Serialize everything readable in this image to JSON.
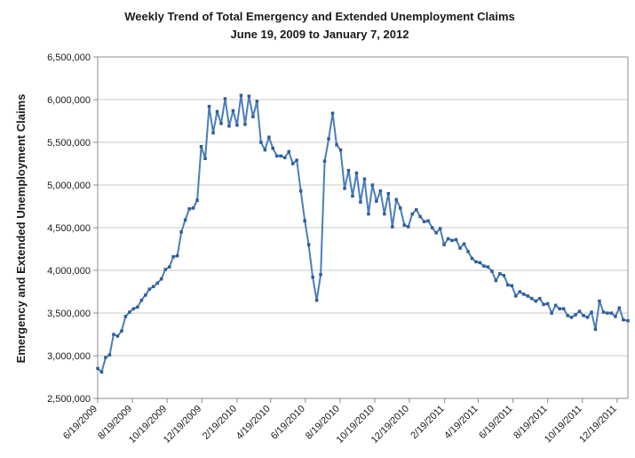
{
  "chart_data": {
    "type": "line",
    "title": "Weekly Trend of Total Emergency and Extended Unemployment Claims",
    "subtitle": "June 19, 2009 to January 7, 2012",
    "xlabel": "",
    "ylabel": "Emergency and Extended Unemployment Claims",
    "ylim": [
      2500000,
      6500000
    ],
    "y_ticks": [
      {
        "value": 2500000,
        "label": "2,500,000"
      },
      {
        "value": 3000000,
        "label": "3,000,000"
      },
      {
        "value": 3500000,
        "label": "3,500,000"
      },
      {
        "value": 4000000,
        "label": "4,000,000"
      },
      {
        "value": 4500000,
        "label": "4,500,000"
      },
      {
        "value": 5000000,
        "label": "5,000,000"
      },
      {
        "value": 5500000,
        "label": "5,500,000"
      },
      {
        "value": 6000000,
        "label": "6,000,000"
      },
      {
        "value": 6500000,
        "label": "6,500,000"
      }
    ],
    "x_start": "2009-06-19",
    "x_end": "2012-01-07",
    "x_ticks": [
      {
        "date": "2009-06-19",
        "label": "6/19/2009"
      },
      {
        "date": "2009-08-19",
        "label": "8/19/2009"
      },
      {
        "date": "2009-10-19",
        "label": "10/19/2009"
      },
      {
        "date": "2009-12-19",
        "label": "12/19/2009"
      },
      {
        "date": "2010-02-19",
        "label": "2/19/2010"
      },
      {
        "date": "2010-04-19",
        "label": "4/19/2010"
      },
      {
        "date": "2010-06-19",
        "label": "6/19/2010"
      },
      {
        "date": "2010-08-19",
        "label": "8/19/2010"
      },
      {
        "date": "2010-10-19",
        "label": "10/19/2010"
      },
      {
        "date": "2010-12-19",
        "label": "12/19/2010"
      },
      {
        "date": "2011-02-19",
        "label": "2/19/2011"
      },
      {
        "date": "2011-04-19",
        "label": "4/19/2011"
      },
      {
        "date": "2011-06-19",
        "label": "6/19/2011"
      },
      {
        "date": "2011-08-19",
        "label": "8/19/2011"
      },
      {
        "date": "2011-10-19",
        "label": "10/19/2011"
      },
      {
        "date": "2011-12-19",
        "label": "12/19/2011"
      }
    ],
    "grid": true,
    "legend": "none",
    "line_color": "#4a7ebb",
    "marker_color": "#2f5e99",
    "series": [
      {
        "name": "",
        "points": [
          {
            "x": "2009-06-19",
            "y": 2850000
          },
          {
            "x": "2009-06-26",
            "y": 2810000
          },
          {
            "x": "2009-07-03",
            "y": 2980000
          },
          {
            "x": "2009-07-10",
            "y": 3010000
          },
          {
            "x": "2009-07-17",
            "y": 3250000
          },
          {
            "x": "2009-07-24",
            "y": 3230000
          },
          {
            "x": "2009-07-31",
            "y": 3290000
          },
          {
            "x": "2009-08-07",
            "y": 3460000
          },
          {
            "x": "2009-08-14",
            "y": 3510000
          },
          {
            "x": "2009-08-21",
            "y": 3550000
          },
          {
            "x": "2009-08-28",
            "y": 3570000
          },
          {
            "x": "2009-09-04",
            "y": 3650000
          },
          {
            "x": "2009-09-11",
            "y": 3710000
          },
          {
            "x": "2009-09-18",
            "y": 3780000
          },
          {
            "x": "2009-09-25",
            "y": 3810000
          },
          {
            "x": "2009-10-02",
            "y": 3850000
          },
          {
            "x": "2009-10-09",
            "y": 3900000
          },
          {
            "x": "2009-10-16",
            "y": 4010000
          },
          {
            "x": "2009-10-23",
            "y": 4040000
          },
          {
            "x": "2009-10-30",
            "y": 4160000
          },
          {
            "x": "2009-11-06",
            "y": 4170000
          },
          {
            "x": "2009-11-13",
            "y": 4450000
          },
          {
            "x": "2009-11-20",
            "y": 4590000
          },
          {
            "x": "2009-11-27",
            "y": 4720000
          },
          {
            "x": "2009-12-04",
            "y": 4730000
          },
          {
            "x": "2009-12-11",
            "y": 4820000
          },
          {
            "x": "2009-12-18",
            "y": 5450000
          },
          {
            "x": "2009-12-25",
            "y": 5310000
          },
          {
            "x": "2010-01-01",
            "y": 5920000
          },
          {
            "x": "2010-01-08",
            "y": 5610000
          },
          {
            "x": "2010-01-15",
            "y": 5860000
          },
          {
            "x": "2010-01-22",
            "y": 5720000
          },
          {
            "x": "2010-01-29",
            "y": 6010000
          },
          {
            "x": "2010-02-05",
            "y": 5690000
          },
          {
            "x": "2010-02-12",
            "y": 5870000
          },
          {
            "x": "2010-02-19",
            "y": 5700000
          },
          {
            "x": "2010-02-26",
            "y": 6050000
          },
          {
            "x": "2010-03-05",
            "y": 5710000
          },
          {
            "x": "2010-03-12",
            "y": 6040000
          },
          {
            "x": "2010-03-19",
            "y": 5800000
          },
          {
            "x": "2010-03-26",
            "y": 5980000
          },
          {
            "x": "2010-04-02",
            "y": 5500000
          },
          {
            "x": "2010-04-09",
            "y": 5410000
          },
          {
            "x": "2010-04-16",
            "y": 5560000
          },
          {
            "x": "2010-04-23",
            "y": 5430000
          },
          {
            "x": "2010-04-30",
            "y": 5340000
          },
          {
            "x": "2010-05-07",
            "y": 5340000
          },
          {
            "x": "2010-05-14",
            "y": 5320000
          },
          {
            "x": "2010-05-21",
            "y": 5390000
          },
          {
            "x": "2010-05-28",
            "y": 5250000
          },
          {
            "x": "2010-06-04",
            "y": 5290000
          },
          {
            "x": "2010-06-11",
            "y": 4930000
          },
          {
            "x": "2010-06-18",
            "y": 4580000
          },
          {
            "x": "2010-06-25",
            "y": 4300000
          },
          {
            "x": "2010-07-02",
            "y": 3920000
          },
          {
            "x": "2010-07-09",
            "y": 3650000
          },
          {
            "x": "2010-07-16",
            "y": 3950000
          },
          {
            "x": "2010-07-23",
            "y": 5280000
          },
          {
            "x": "2010-07-30",
            "y": 5540000
          },
          {
            "x": "2010-08-06",
            "y": 5840000
          },
          {
            "x": "2010-08-13",
            "y": 5470000
          },
          {
            "x": "2010-08-20",
            "y": 5410000
          },
          {
            "x": "2010-08-27",
            "y": 4960000
          },
          {
            "x": "2010-09-03",
            "y": 5170000
          },
          {
            "x": "2010-09-10",
            "y": 4870000
          },
          {
            "x": "2010-09-17",
            "y": 5140000
          },
          {
            "x": "2010-09-24",
            "y": 4800000
          },
          {
            "x": "2010-10-01",
            "y": 5070000
          },
          {
            "x": "2010-10-08",
            "y": 4660000
          },
          {
            "x": "2010-10-15",
            "y": 5000000
          },
          {
            "x": "2010-10-22",
            "y": 4810000
          },
          {
            "x": "2010-10-29",
            "y": 4930000
          },
          {
            "x": "2010-11-05",
            "y": 4660000
          },
          {
            "x": "2010-11-12",
            "y": 4900000
          },
          {
            "x": "2010-11-19",
            "y": 4510000
          },
          {
            "x": "2010-11-26",
            "y": 4830000
          },
          {
            "x": "2010-12-03",
            "y": 4730000
          },
          {
            "x": "2010-12-10",
            "y": 4530000
          },
          {
            "x": "2010-12-17",
            "y": 4510000
          },
          {
            "x": "2010-12-24",
            "y": 4660000
          },
          {
            "x": "2010-12-31",
            "y": 4710000
          },
          {
            "x": "2011-01-07",
            "y": 4630000
          },
          {
            "x": "2011-01-14",
            "y": 4570000
          },
          {
            "x": "2011-01-21",
            "y": 4580000
          },
          {
            "x": "2011-01-28",
            "y": 4500000
          },
          {
            "x": "2011-02-04",
            "y": 4440000
          },
          {
            "x": "2011-02-11",
            "y": 4490000
          },
          {
            "x": "2011-02-18",
            "y": 4300000
          },
          {
            "x": "2011-02-25",
            "y": 4370000
          },
          {
            "x": "2011-03-04",
            "y": 4350000
          },
          {
            "x": "2011-03-11",
            "y": 4360000
          },
          {
            "x": "2011-03-18",
            "y": 4260000
          },
          {
            "x": "2011-03-25",
            "y": 4310000
          },
          {
            "x": "2011-04-01",
            "y": 4220000
          },
          {
            "x": "2011-04-08",
            "y": 4140000
          },
          {
            "x": "2011-04-15",
            "y": 4100000
          },
          {
            "x": "2011-04-22",
            "y": 4090000
          },
          {
            "x": "2011-04-29",
            "y": 4050000
          },
          {
            "x": "2011-05-06",
            "y": 4040000
          },
          {
            "x": "2011-05-13",
            "y": 3990000
          },
          {
            "x": "2011-05-20",
            "y": 3880000
          },
          {
            "x": "2011-05-27",
            "y": 3960000
          },
          {
            "x": "2011-06-03",
            "y": 3940000
          },
          {
            "x": "2011-06-10",
            "y": 3830000
          },
          {
            "x": "2011-06-17",
            "y": 3820000
          },
          {
            "x": "2011-06-24",
            "y": 3700000
          },
          {
            "x": "2011-07-01",
            "y": 3750000
          },
          {
            "x": "2011-07-08",
            "y": 3720000
          },
          {
            "x": "2011-07-15",
            "y": 3700000
          },
          {
            "x": "2011-07-22",
            "y": 3670000
          },
          {
            "x": "2011-07-29",
            "y": 3640000
          },
          {
            "x": "2011-08-05",
            "y": 3670000
          },
          {
            "x": "2011-08-12",
            "y": 3600000
          },
          {
            "x": "2011-08-19",
            "y": 3610000
          },
          {
            "x": "2011-08-26",
            "y": 3500000
          },
          {
            "x": "2011-09-02",
            "y": 3590000
          },
          {
            "x": "2011-09-09",
            "y": 3550000
          },
          {
            "x": "2011-09-16",
            "y": 3550000
          },
          {
            "x": "2011-09-23",
            "y": 3470000
          },
          {
            "x": "2011-09-30",
            "y": 3450000
          },
          {
            "x": "2011-10-07",
            "y": 3480000
          },
          {
            "x": "2011-10-14",
            "y": 3520000
          },
          {
            "x": "2011-10-21",
            "y": 3470000
          },
          {
            "x": "2011-10-28",
            "y": 3450000
          },
          {
            "x": "2011-11-04",
            "y": 3510000
          },
          {
            "x": "2011-11-11",
            "y": 3310000
          },
          {
            "x": "2011-11-18",
            "y": 3640000
          },
          {
            "x": "2011-11-25",
            "y": 3510000
          },
          {
            "x": "2011-12-02",
            "y": 3500000
          },
          {
            "x": "2011-12-09",
            "y": 3500000
          },
          {
            "x": "2011-12-16",
            "y": 3460000
          },
          {
            "x": "2011-12-23",
            "y": 3560000
          },
          {
            "x": "2011-12-30",
            "y": 3420000
          },
          {
            "x": "2012-01-07",
            "y": 3410000
          }
        ]
      }
    ]
  }
}
